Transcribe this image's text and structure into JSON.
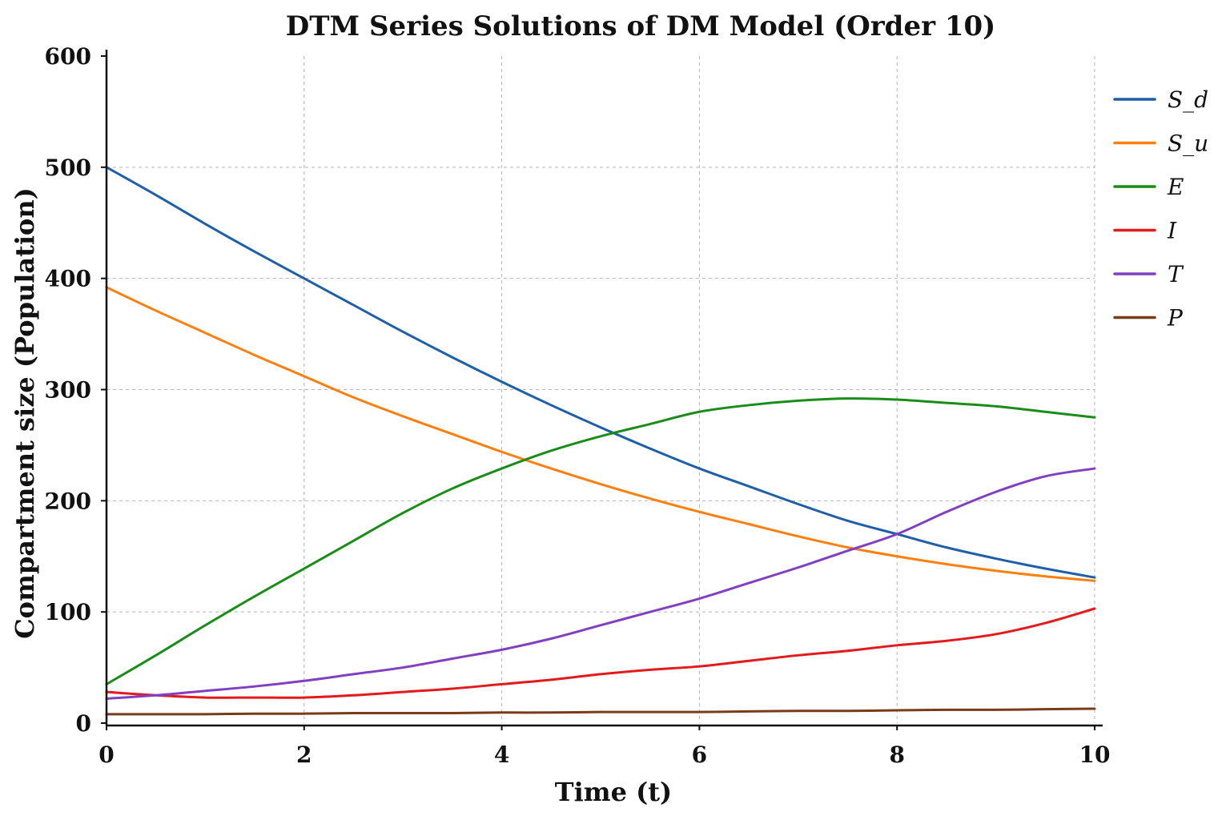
{
  "chart_data": {
    "type": "line",
    "title": "DTM Series Solutions of DM Model (Order 10)",
    "xlabel": "Time (t)",
    "ylabel": "Compartment size (Population)",
    "xlim": [
      0,
      10
    ],
    "ylim": [
      0,
      600
    ],
    "xticks": [
      0,
      2,
      4,
      6,
      8,
      10
    ],
    "xtick_labels": [
      "0",
      "2",
      "4",
      "6",
      "8",
      "10"
    ],
    "yticks": [
      0,
      100,
      200,
      300,
      400,
      500,
      600
    ],
    "ytick_labels": [
      "0",
      "100",
      "200",
      "300",
      "400",
      "500",
      "600"
    ],
    "grid": true,
    "legend_position": "right",
    "x": [
      0,
      0.5,
      1,
      1.5,
      2,
      2.5,
      3,
      3.5,
      4,
      4.5,
      5,
      5.5,
      6,
      6.5,
      7,
      7.5,
      8,
      8.5,
      9,
      9.5,
      10
    ],
    "series": [
      {
        "name": "S_d",
        "color": "#1f5fa8",
        "values": [
          500,
          475,
          449,
          424,
          400,
          376,
          352,
          329,
          307,
          286,
          266,
          247,
          229,
          213,
          197,
          182,
          170,
          158,
          148,
          139,
          131
        ]
      },
      {
        "name": "S_u",
        "color": "#ff7f0e",
        "values": [
          392,
          371,
          351,
          331,
          312,
          293,
          276,
          260,
          244,
          229,
          215,
          202,
          190,
          179,
          168,
          158,
          150,
          143,
          137,
          132,
          128
        ]
      },
      {
        "name": "E",
        "color": "#1a8c1a",
        "values": [
          35,
          61,
          88,
          114,
          139,
          164,
          189,
          211,
          229,
          245,
          258,
          269,
          280,
          286,
          290,
          292,
          291,
          288,
          285,
          280,
          275
        ]
      },
      {
        "name": "I",
        "color": "#e31a1c",
        "values": [
          28,
          25,
          23,
          23,
          23,
          25,
          28,
          31,
          35,
          39,
          44,
          48,
          51,
          56,
          61,
          65,
          70,
          74,
          80,
          90,
          103
        ]
      },
      {
        "name": "T",
        "color": "#8040c0",
        "values": [
          22,
          25,
          29,
          33,
          38,
          44,
          50,
          58,
          66,
          76,
          88,
          100,
          112,
          126,
          140,
          155,
          170,
          190,
          208,
          222,
          229
        ]
      },
      {
        "name": "P",
        "color": "#7a3b1a",
        "values": [
          8,
          8,
          8,
          8.5,
          8.5,
          9,
          9,
          9,
          9.5,
          9.5,
          10,
          10,
          10,
          10.5,
          11,
          11,
          11.5,
          12,
          12,
          12.5,
          13
        ]
      }
    ]
  }
}
